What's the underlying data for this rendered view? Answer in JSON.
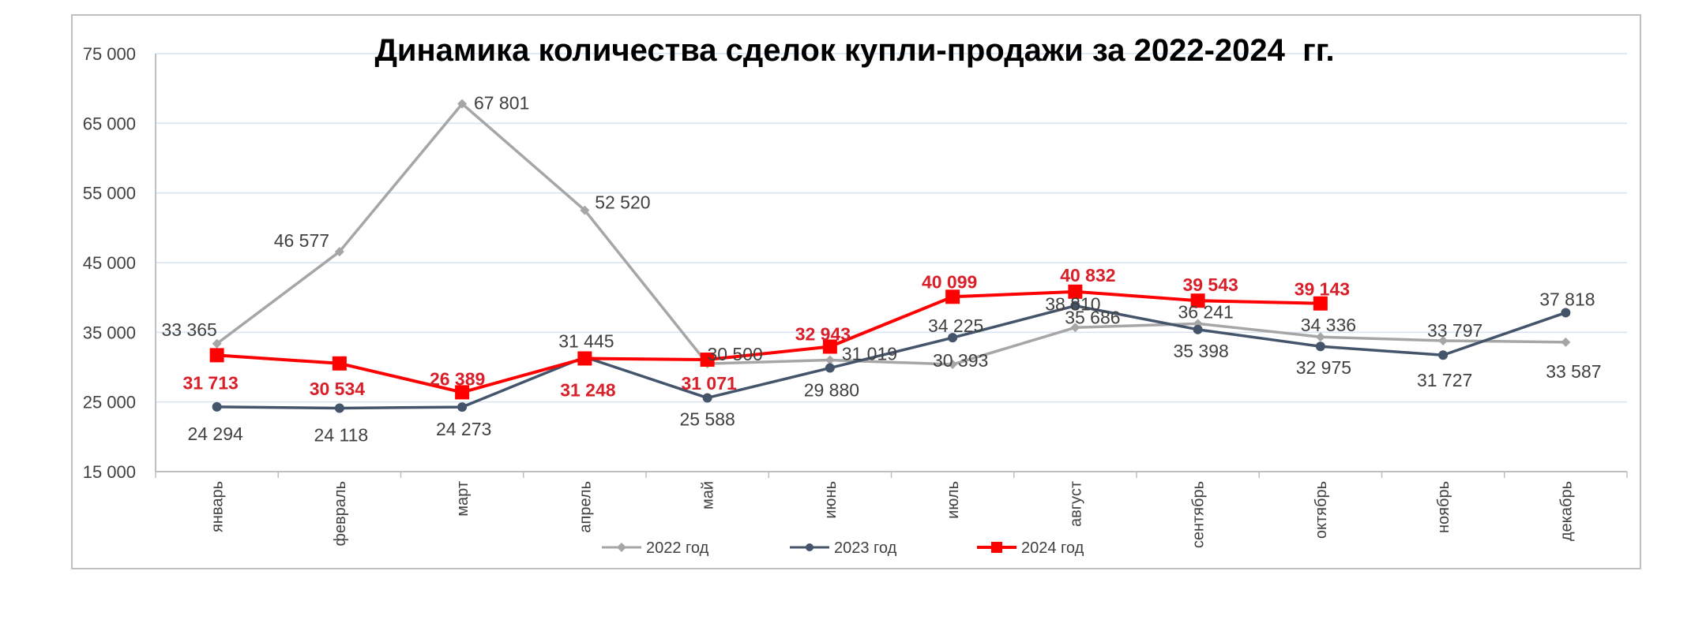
{
  "chart_data": {
    "type": "line",
    "title": "Динамика количества сделок купли-продажи за 2022-2024  гг.",
    "xlabel": "",
    "ylabel": "",
    "ylim": [
      15000,
      75000
    ],
    "yticks": [
      15000,
      25000,
      35000,
      45000,
      55000,
      65000,
      75000
    ],
    "ytick_labels": [
      "15 000",
      "25 000",
      "35 000",
      "45 000",
      "55 000",
      "65 000",
      "75 000"
    ],
    "grid": true,
    "legend_position": "bottom",
    "categories": [
      "январь",
      "февраль",
      "март",
      "апрель",
      "май",
      "июнь",
      "июль",
      "август",
      "сентябрь",
      "октябрь",
      "ноябрь",
      "декабрь"
    ],
    "series": [
      {
        "name": "2022 год",
        "color": "#a6a6a6",
        "marker": "diamond",
        "bold_labels": false,
        "values": [
          33365,
          46577,
          67801,
          52520,
          30500,
          31019,
          30393,
          35686,
          36241,
          34336,
          33797,
          33587
        ],
        "labels": [
          "33 365",
          "46 577",
          "67 801",
          "52 520",
          "30 500",
          "31 019",
          "30 393",
          "35 686",
          "36 241",
          "34 336",
          "33 797",
          "33 587"
        ]
      },
      {
        "name": "2023 год",
        "color": "#44546a",
        "marker": "circle",
        "bold_labels": false,
        "values": [
          24294,
          24118,
          24273,
          31445,
          25588,
          29880,
          34225,
          38810,
          35398,
          32975,
          31727,
          37818
        ],
        "labels": [
          "24 294",
          "24 118",
          "24 273",
          "31 445",
          "25 588",
          "29 880",
          "34 225",
          "38 810",
          "35 398",
          "32 975",
          "31 727",
          "37 818"
        ]
      },
      {
        "name": "2024 год",
        "color": "#ff0000",
        "label_color": "#d9202a",
        "marker": "square",
        "bold_labels": true,
        "values": [
          31713,
          30534,
          26389,
          31248,
          31071,
          32943,
          40099,
          40832,
          39543,
          39143,
          null,
          null
        ],
        "labels": [
          "31 713",
          "30 534",
          "26 389",
          "31 248",
          "31 071",
          "32 943",
          "40 099",
          "40 832",
          "39 543",
          "39 143",
          "",
          ""
        ]
      }
    ]
  }
}
